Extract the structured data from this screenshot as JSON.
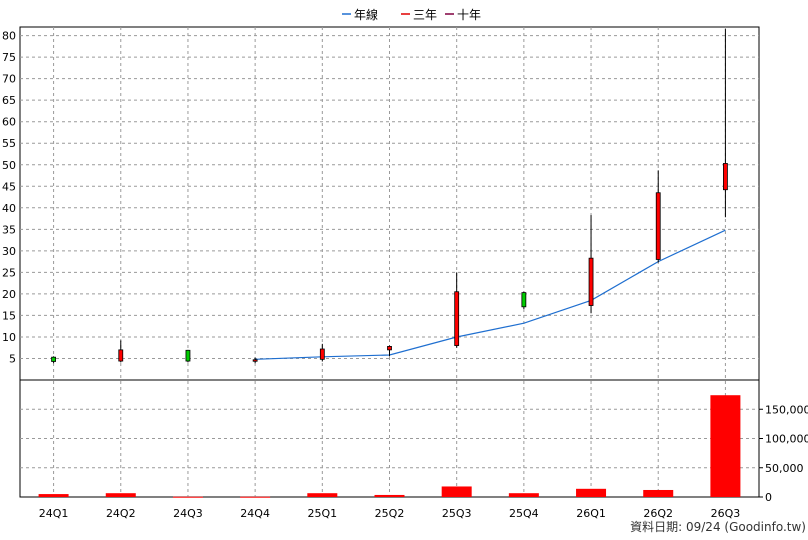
{
  "chart_data": {
    "type": "candlestick",
    "legend": [
      {
        "label": "年線",
        "color": "#1f6fd0"
      },
      {
        "label": "三年",
        "color": "#e00000"
      },
      {
        "label": "十年",
        "color": "#800040"
      }
    ],
    "categories": [
      "24Q1",
      "24Q2",
      "24Q3",
      "24Q4",
      "25Q1",
      "25Q2",
      "25Q3",
      "25Q4",
      "26Q1",
      "26Q2",
      "26Q3"
    ],
    "price_axis": {
      "min": 0,
      "max": 82,
      "ticks": [
        5,
        10,
        15,
        20,
        25,
        30,
        35,
        40,
        45,
        50,
        55,
        60,
        65,
        70,
        75,
        80
      ]
    },
    "volume_axis": {
      "min": 0,
      "max": 200000,
      "ticks": [
        0,
        50000,
        100000,
        150000
      ],
      "tick_labels": [
        "0",
        "50,000",
        "100,000",
        "150,000"
      ]
    },
    "candles": [
      {
        "open": 4.3,
        "high": 5.5,
        "low": 3.9,
        "close": 5.3,
        "color": "#00cc00"
      },
      {
        "open": 7.0,
        "high": 9.2,
        "low": 4.1,
        "close": 4.4,
        "color": "#ff0000"
      },
      {
        "open": 4.4,
        "high": 7.0,
        "low": 4.1,
        "close": 6.9,
        "color": "#00cc00"
      },
      {
        "open": 4.7,
        "high": 5.2,
        "low": 3.9,
        "close": 4.5,
        "color": "#ff0000"
      },
      {
        "open": 7.2,
        "high": 8.4,
        "low": 4.3,
        "close": 4.8,
        "color": "#ff0000"
      },
      {
        "open": 7.8,
        "high": 8.0,
        "low": 5.5,
        "close": 7.0,
        "color": "#ff0000"
      },
      {
        "open": 20.5,
        "high": 25.0,
        "low": 7.5,
        "close": 8.0,
        "color": "#ff0000"
      },
      {
        "open": 17.0,
        "high": 20.5,
        "low": 16.5,
        "close": 20.3,
        "color": "#00cc00"
      },
      {
        "open": 28.3,
        "high": 38.3,
        "low": 15.5,
        "close": 17.3,
        "color": "#ff0000"
      },
      {
        "open": 43.5,
        "high": 48.7,
        "low": 27.3,
        "close": 28.0,
        "color": "#ff0000"
      },
      {
        "open": 50.3,
        "high": 81.5,
        "low": 37.8,
        "close": 44.2,
        "color": "#ff0000"
      }
    ],
    "year_line": [
      {
        "index": 3,
        "value": 4.8
      },
      {
        "index": 4,
        "value": 5.4
      },
      {
        "index": 5,
        "value": 5.8
      },
      {
        "index": 6,
        "value": 10.0
      },
      {
        "index": 7,
        "value": 13.2
      },
      {
        "index": 8,
        "value": 18.5
      },
      {
        "index": 9,
        "value": 27.5
      },
      {
        "index": 10,
        "value": 34.8
      }
    ],
    "volume": [
      5000,
      6500,
      500,
      500,
      6500,
      3500,
      18000,
      6500,
      14000,
      12000,
      174000
    ],
    "volume_color": "#ff0000"
  },
  "footer": "資料日期: 09/24  (Goodinfo.tw)"
}
